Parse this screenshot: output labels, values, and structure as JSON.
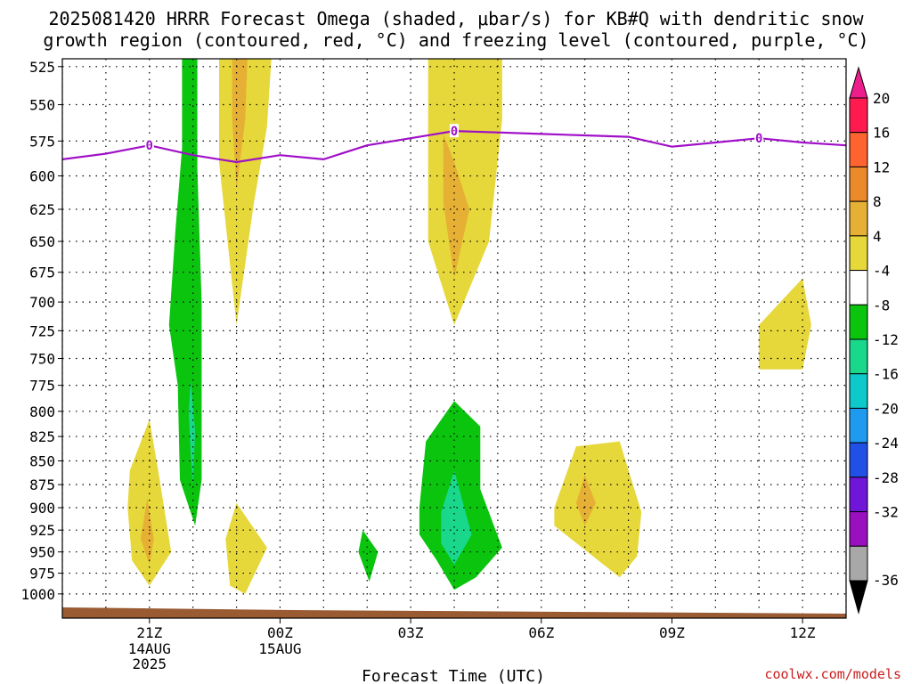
{
  "header": {
    "title_line1": "2025081420 HRRR Forecast Omega (shaded, μbar/s) for KB#Q with dendritic snow",
    "title_line2": "growth region (contoured, red, °C) and freezing level (contoured, purple, °C)"
  },
  "footer": {
    "xlabel": "Forecast Time (UTC)",
    "credit": "coolwx.com/models"
  },
  "chart_data": {
    "type": "heatmap",
    "x_unit": "forecast hour from 2025-08-14 20Z",
    "xlim": [
      -1,
      17
    ],
    "y_levels": [
      "525",
      "550",
      "575",
      "600",
      "625",
      "650",
      "675",
      "700",
      "725",
      "750",
      "775",
      "800",
      "825",
      "850",
      "875",
      "900",
      "925",
      "950",
      "975",
      "1000"
    ],
    "ylim": [
      520,
      1030
    ],
    "y_scale": "log",
    "x_ticks": [
      {
        "x": 1,
        "label": "21Z",
        "sub1": "14AUG",
        "sub2": "2025"
      },
      {
        "x": 4,
        "label": "00Z",
        "sub1": "15AUG",
        "sub2": ""
      },
      {
        "x": 7,
        "label": "03Z",
        "sub1": "",
        "sub2": ""
      },
      {
        "x": 10,
        "label": "06Z",
        "sub1": "",
        "sub2": ""
      },
      {
        "x": 13,
        "label": "09Z",
        "sub1": "",
        "sub2": ""
      },
      {
        "x": 16,
        "label": "12Z",
        "sub1": "",
        "sub2": ""
      }
    ],
    "colorbar": {
      "labels": [
        "20",
        "16",
        "12",
        "8",
        "4",
        "-4",
        "-8",
        "-12",
        "-16",
        "-20",
        "-24",
        "-28",
        "-32",
        "-36"
      ],
      "colors": [
        "#ff1a4f",
        "#ff6430",
        "#eb8a2a",
        "#e6b035",
        "#e6d73a",
        "#ffffff",
        "#0ac40e",
        "#19d88c",
        "#0dc9c9",
        "#1e9bf0",
        "#2050e6",
        "#6f16d8",
        "#9a0fc0",
        "#a8a8a8"
      ],
      "top_arrow_color": "#ee1d8c",
      "bottom_arrow_color": "#000000"
    },
    "regions": [
      {
        "name": "ascent-21z-low",
        "category": "4 to 8",
        "color": "#e6d73a",
        "points": [
          [
            0.5,
            900
          ],
          [
            0.55,
            860
          ],
          [
            1.0,
            808
          ],
          [
            1.2,
            860
          ],
          [
            1.5,
            950
          ],
          [
            1.0,
            990
          ],
          [
            0.6,
            960
          ]
        ]
      },
      {
        "name": "ascent-21z-low-core",
        "category": "8 to 12",
        "color": "#e6b035",
        "points": [
          [
            0.8,
            935
          ],
          [
            0.95,
            890
          ],
          [
            1.1,
            935
          ],
          [
            1.0,
            965
          ]
        ]
      },
      {
        "name": "sinking-2130z",
        "category": "-8 to -4",
        "color": "#0ac40e",
        "points": [
          [
            1.75,
            520
          ],
          [
            2.1,
            520
          ],
          [
            2.1,
            595
          ],
          [
            2.2,
            700
          ],
          [
            2.2,
            870
          ],
          [
            2.05,
            920
          ],
          [
            1.7,
            870
          ],
          [
            1.65,
            775
          ],
          [
            1.45,
            720
          ],
          [
            1.6,
            640
          ],
          [
            1.75,
            580
          ]
        ]
      },
      {
        "name": "sinking-2130z-core",
        "category": "-12 to -8",
        "color": "#19d88c",
        "points": [
          [
            1.9,
            800
          ],
          [
            1.95,
            770
          ],
          [
            2.05,
            820
          ],
          [
            2.0,
            875
          ],
          [
            1.95,
            845
          ]
        ]
      },
      {
        "name": "ascent-2230z-upper",
        "category": "4 to 8",
        "color": "#e6d73a",
        "points": [
          [
            2.6,
            520
          ],
          [
            3.8,
            520
          ],
          [
            3.7,
            565
          ],
          [
            3.4,
            620
          ],
          [
            3.0,
            720
          ],
          [
            2.6,
            590
          ]
        ]
      },
      {
        "name": "ascent-2230z-upper-core",
        "category": "8 to 12",
        "color": "#e6b035",
        "points": [
          [
            2.9,
            520
          ],
          [
            3.25,
            520
          ],
          [
            3.2,
            560
          ],
          [
            3.0,
            610
          ],
          [
            2.9,
            560
          ]
        ]
      },
      {
        "name": "ascent-2230z-low",
        "category": "4 to 8",
        "color": "#e6d73a",
        "points": [
          [
            2.75,
            935
          ],
          [
            3.0,
            895
          ],
          [
            3.7,
            945
          ],
          [
            3.2,
            1000
          ],
          [
            2.85,
            990
          ]
        ]
      },
      {
        "name": "sinking-0130z",
        "category": "-8 to -4",
        "color": "#0ac40e",
        "points": [
          [
            5.8,
            950
          ],
          [
            5.9,
            925
          ],
          [
            6.25,
            950
          ],
          [
            6.05,
            985
          ]
        ]
      },
      {
        "name": "ascent-0400z-upper",
        "category": "4 to 8",
        "color": "#e6d73a",
        "points": [
          [
            7.4,
            520
          ],
          [
            9.1,
            520
          ],
          [
            9.1,
            560
          ],
          [
            8.8,
            650
          ],
          [
            8.0,
            720
          ],
          [
            7.4,
            650
          ]
        ]
      },
      {
        "name": "ascent-0400z-upper-core",
        "category": "8 to 12",
        "color": "#e6b035",
        "points": [
          [
            7.75,
            570
          ],
          [
            8.0,
            590
          ],
          [
            8.35,
            625
          ],
          [
            8.0,
            680
          ],
          [
            7.75,
            620
          ]
        ]
      },
      {
        "name": "sinking-0400z-low",
        "category": "-8 to -4",
        "color": "#0ac40e",
        "points": [
          [
            7.2,
            900
          ],
          [
            7.35,
            830
          ],
          [
            8.0,
            790
          ],
          [
            8.6,
            815
          ],
          [
            8.6,
            880
          ],
          [
            9.1,
            945
          ],
          [
            8.5,
            980
          ],
          [
            8.0,
            995
          ],
          [
            7.6,
            960
          ],
          [
            7.2,
            930
          ]
        ]
      },
      {
        "name": "sinking-0400z-low-core",
        "category": "-12 to -8",
        "color": "#19d88c",
        "points": [
          [
            7.7,
            905
          ],
          [
            8.0,
            860
          ],
          [
            8.4,
            930
          ],
          [
            8.0,
            965
          ],
          [
            7.7,
            940
          ]
        ]
      },
      {
        "name": "ascent-0700z-low",
        "category": "4 to 8",
        "color": "#e6d73a",
        "points": [
          [
            10.3,
            900
          ],
          [
            10.8,
            835
          ],
          [
            11.8,
            830
          ],
          [
            12.3,
            905
          ],
          [
            12.2,
            955
          ],
          [
            11.8,
            980
          ],
          [
            10.3,
            920
          ]
        ]
      },
      {
        "name": "ascent-0700z-low-core",
        "category": "8 to 12",
        "color": "#e6b035",
        "points": [
          [
            10.8,
            895
          ],
          [
            11.0,
            865
          ],
          [
            11.25,
            895
          ],
          [
            11.0,
            920
          ]
        ]
      },
      {
        "name": "ascent-1100z-mid",
        "category": "4 to 8",
        "color": "#e6d73a",
        "points": [
          [
            15.0,
            720
          ],
          [
            16.0,
            680
          ],
          [
            16.2,
            720
          ],
          [
            16.0,
            760
          ],
          [
            15.0,
            760
          ]
        ]
      }
    ],
    "freezing_level": {
      "label": "0",
      "color": "#a010c8",
      "points": [
        [
          -1,
          588
        ],
        [
          0,
          584
        ],
        [
          1,
          578
        ],
        [
          2,
          585
        ],
        [
          3,
          590
        ],
        [
          4,
          585
        ],
        [
          5,
          588
        ],
        [
          6,
          578
        ],
        [
          7,
          573
        ],
        [
          8,
          568
        ],
        [
          9,
          569
        ],
        [
          10,
          570
        ],
        [
          11,
          571
        ],
        [
          12,
          572
        ],
        [
          13,
          579
        ],
        [
          14,
          576
        ],
        [
          15,
          573
        ],
        [
          16,
          576
        ],
        [
          17,
          578
        ]
      ],
      "label_points": [
        [
          1,
          578
        ],
        [
          8,
          568
        ],
        [
          15,
          573
        ]
      ]
    },
    "surface_color": "#9a5a32"
  }
}
